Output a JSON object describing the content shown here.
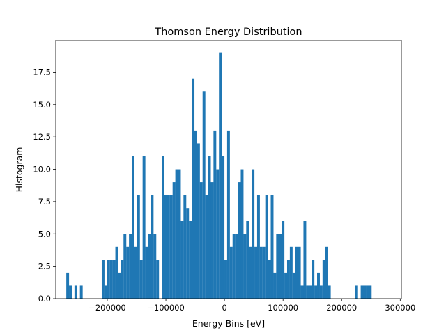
{
  "chart_data": {
    "type": "bar",
    "title": "Thomson Energy Distribution",
    "xlabel": "Energy Bins [eV]",
    "ylabel": "Histogram",
    "xlim": [
      -288000,
      302000
    ],
    "ylim": [
      0,
      19.95
    ],
    "x_ticks": [
      -200000,
      -100000,
      0,
      100000,
      200000,
      300000
    ],
    "x_tick_labels": [
      "−200000",
      "−100000",
      "0",
      "100000",
      "200000",
      "300000"
    ],
    "y_ticks": [
      0,
      2.5,
      5,
      7.5,
      10,
      12.5,
      15,
      17.5
    ],
    "y_tick_labels": [
      "0.0",
      "2.5",
      "5.0",
      "7.5",
      "10.0",
      "12.5",
      "15.0",
      "17.5"
    ],
    "grid": false,
    "bin_start": -270000,
    "bin_width": 4653,
    "counts": [
      2,
      1,
      0,
      1,
      0,
      1,
      0,
      0,
      0,
      0,
      0,
      0,
      0,
      3,
      1,
      3,
      3,
      3,
      4,
      2,
      3,
      5,
      4,
      5,
      11,
      4,
      8,
      3,
      11,
      4,
      5,
      8,
      5,
      3,
      0,
      11,
      8,
      8,
      8,
      9,
      10,
      10,
      6,
      8,
      7,
      6,
      17,
      13,
      12,
      9,
      16,
      8,
      11,
      9,
      13,
      10,
      19,
      11,
      3,
      13,
      4,
      5,
      5,
      9,
      10,
      5,
      6,
      4,
      10,
      4,
      8,
      4,
      4,
      8,
      3,
      8,
      2,
      5,
      5,
      6,
      2,
      3,
      4,
      2,
      4,
      4,
      1,
      6,
      1,
      1,
      3,
      1,
      2,
      1,
      3,
      4,
      1,
      0,
      0,
      0,
      0,
      0,
      0,
      0,
      0,
      0,
      1,
      0,
      1,
      1,
      1,
      1
    ]
  },
  "colors": {
    "bar": "#1f77b4",
    "axes": "#000000",
    "background": "#ffffff"
  }
}
